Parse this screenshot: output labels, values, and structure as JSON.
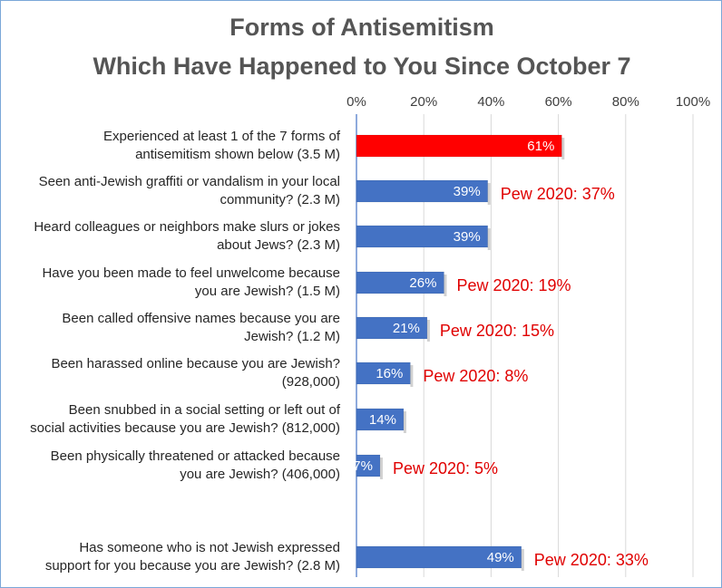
{
  "chart_data": {
    "type": "bar",
    "orientation": "horizontal",
    "title": [
      "Forms of Antisemitism",
      "Which Have Happened to You Since October 7"
    ],
    "xlim": [
      0,
      100
    ],
    "x_ticks": [
      "0%",
      "20%",
      "40%",
      "60%",
      "80%",
      "100%"
    ],
    "grid": true,
    "categories": [
      [
        "Experienced at least 1 of the 7 forms of",
        "antisemitism shown below (3.5 M)"
      ],
      [
        "Seen anti-Jewish graffiti or vandalism in your local",
        "community? (2.3 M)"
      ],
      [
        "Heard colleagues or neighbors make slurs or jokes",
        "about Jews? (2.3 M)"
      ],
      [
        "Have you been made to feel unwelcome because",
        "you are Jewish? (1.5 M)"
      ],
      [
        "Been called offensive names because you are",
        "Jewish? (1.2 M)"
      ],
      [
        "Been harassed online because you are Jewish?",
        "(928,000)"
      ],
      [
        "Been snubbed in a social setting or left out of",
        "social activities because you are Jewish? (812,000)"
      ],
      [
        "Been physically threatened or attacked because",
        "you are Jewish? (406,000)"
      ],
      [
        "Has someone who is not Jewish expressed",
        "support for you because you are Jewish? (2.8 M)"
      ]
    ],
    "values": [
      61,
      39,
      39,
      26,
      21,
      16,
      14,
      7,
      49
    ],
    "value_labels": [
      "61%",
      "39%",
      "39%",
      "26%",
      "21%",
      "16%",
      "14%",
      "7%",
      "49%"
    ],
    "bar_colors": [
      "#ff0000",
      "#4472c4",
      "#4472c4",
      "#4472c4",
      "#4472c4",
      "#4472c4",
      "#4472c4",
      "#4472c4",
      "#4472c4"
    ],
    "annotations": [
      "",
      "Pew 2020: 37%",
      "",
      "Pew 2020: 19%",
      "Pew 2020: 15%",
      "Pew 2020: 8%",
      "",
      "Pew 2020: 5%",
      "Pew 2020: 33%"
    ],
    "annotation_color": "#e00000"
  }
}
